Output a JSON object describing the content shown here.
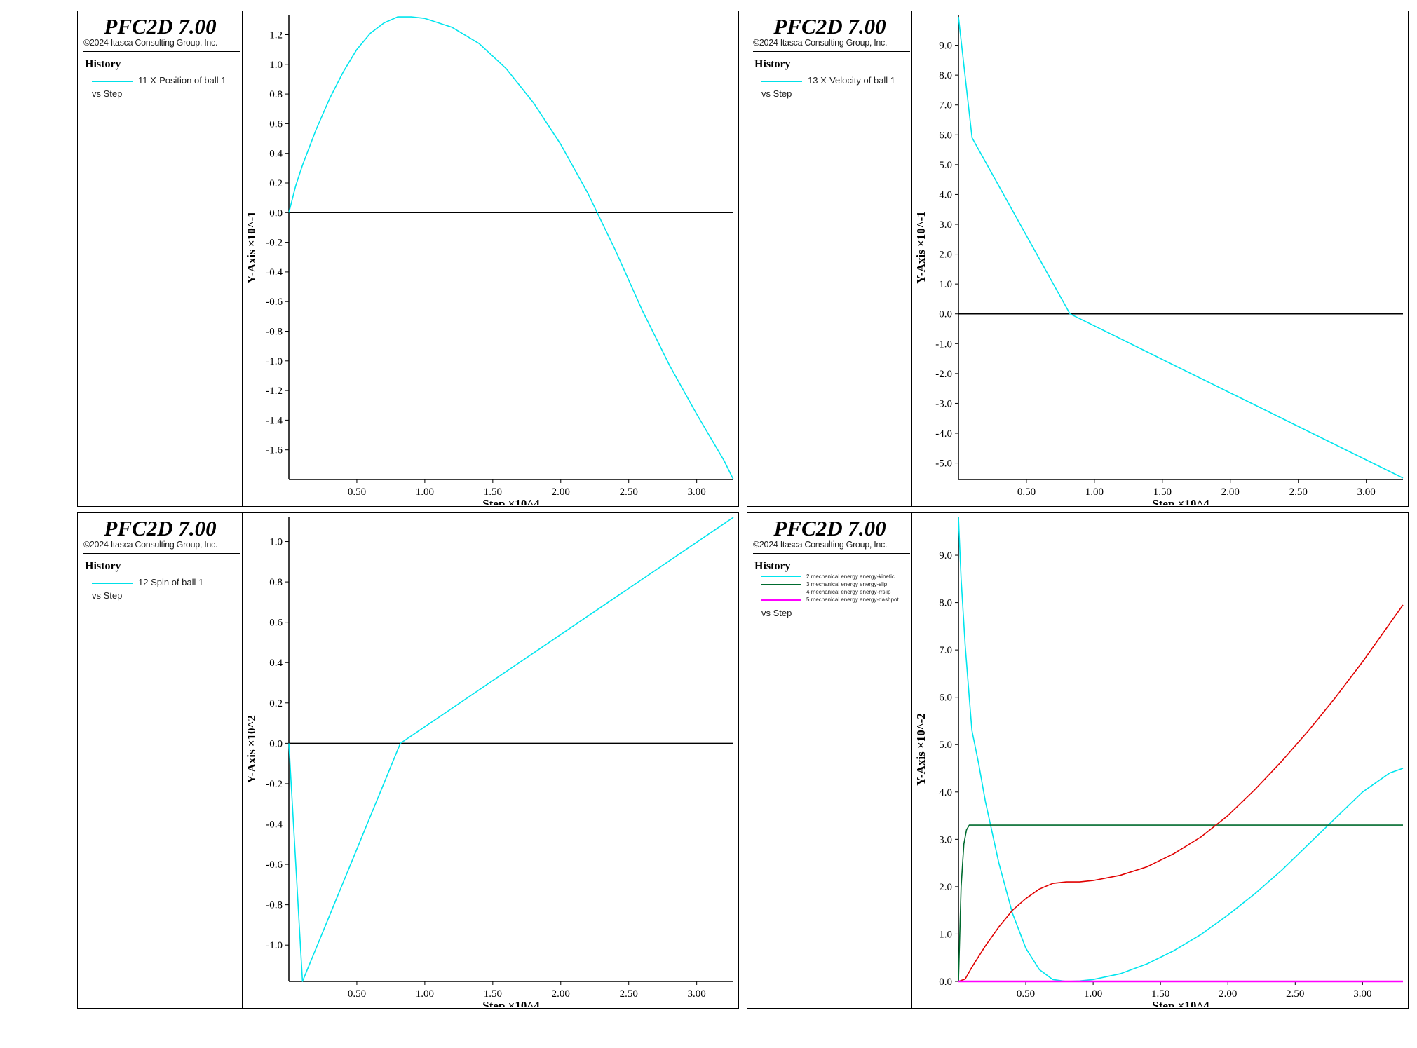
{
  "header": {
    "title": "PFC2D 7.00",
    "copyright": "©2024 Itasca Consulting Group, Inc.",
    "history_label": "History",
    "vs_label": "vs  Step"
  },
  "colors": {
    "cyan": "#00e5ee",
    "green": "#006b2f",
    "red": "#e00000",
    "magenta": "#ff00ff",
    "zero_line": "#000000"
  },
  "chart_data": [
    {
      "type": "line",
      "legend": [
        "11 X-Position of ball 1"
      ],
      "xlabel": "Step ×10^4",
      "ylabel": "Y-Axis ×10^-1",
      "xlim": [
        0,
        3.27
      ],
      "ylim": [
        -1.8,
        1.33
      ],
      "xticks": [
        0.5,
        1.0,
        1.5,
        2.0,
        2.5,
        3.0
      ],
      "xtick_labels": [
        "0.50",
        "1.00",
        "1.50",
        "2.00",
        "2.50",
        "3.00"
      ],
      "yticks": [
        1.2,
        1.0,
        0.8,
        0.6,
        0.4,
        0.2,
        0.0,
        -0.2,
        -0.4,
        -0.6,
        -0.8,
        -1.0,
        -1.2,
        -1.4,
        -1.6
      ],
      "ytick_labels": [
        "1.2",
        "1.0",
        "0.8",
        "0.6",
        "0.4",
        "0.2",
        "0.0",
        "-0.2",
        "-0.4",
        "-0.6",
        "-0.8",
        "-1.0",
        "-1.2",
        "-1.4",
        "-1.6"
      ],
      "zero_line": true,
      "series": [
        {
          "name": "11 X-Position of ball 1",
          "color": "#00e5ee",
          "x": [
            0.0,
            0.05,
            0.1,
            0.2,
            0.3,
            0.4,
            0.5,
            0.6,
            0.7,
            0.8,
            0.9,
            1.0,
            1.2,
            1.4,
            1.6,
            1.8,
            2.0,
            2.2,
            2.4,
            2.6,
            2.8,
            3.0,
            3.2,
            3.27
          ],
          "y": [
            0.0,
            0.18,
            0.32,
            0.56,
            0.77,
            0.95,
            1.1,
            1.21,
            1.28,
            1.32,
            1.32,
            1.31,
            1.25,
            1.14,
            0.97,
            0.74,
            0.46,
            0.13,
            -0.25,
            -0.66,
            -1.03,
            -1.36,
            -1.67,
            -1.8
          ]
        }
      ]
    },
    {
      "type": "line",
      "legend": [
        "13 X-Velocity of ball 1"
      ],
      "xlabel": "Step ×10^4",
      "ylabel": "Y-Axis ×10^-1",
      "xlim": [
        0,
        3.27
      ],
      "ylim": [
        -5.55,
        10.0
      ],
      "xticks": [
        0.5,
        1.0,
        1.5,
        2.0,
        2.5,
        3.0
      ],
      "xtick_labels": [
        "0.50",
        "1.00",
        "1.50",
        "2.00",
        "2.50",
        "3.00"
      ],
      "yticks": [
        9,
        8,
        7,
        6,
        5,
        4,
        3,
        2,
        1,
        0,
        -1,
        -2,
        -3,
        -4,
        -5
      ],
      "ytick_labels": [
        "9.0",
        "8.0",
        "7.0",
        "6.0",
        "5.0",
        "4.0",
        "3.0",
        "2.0",
        "1.0",
        "0.0",
        "-1.0",
        "-2.0",
        "-3.0",
        "-4.0",
        "-5.0"
      ],
      "zero_line": true,
      "series": [
        {
          "name": "13 X-Velocity of ball 1",
          "color": "#00e5ee",
          "x": [
            0.0,
            0.1,
            0.82,
            3.27
          ],
          "y": [
            9.95,
            5.9,
            0.0,
            -5.5
          ]
        }
      ]
    },
    {
      "type": "line",
      "legend": [
        "12 Spin of ball 1"
      ],
      "xlabel": "Step ×10^4",
      "ylabel": "Y-Axis ×10^2",
      "xlim": [
        0,
        3.27
      ],
      "ylim": [
        -1.18,
        1.12
      ],
      "xticks": [
        0.5,
        1.0,
        1.5,
        2.0,
        2.5,
        3.0
      ],
      "xtick_labels": [
        "0.50",
        "1.00",
        "1.50",
        "2.00",
        "2.50",
        "3.00"
      ],
      "yticks": [
        1.0,
        0.8,
        0.6,
        0.4,
        0.2,
        0.0,
        -0.2,
        -0.4,
        -0.6,
        -0.8,
        -1.0
      ],
      "ytick_labels": [
        "1.0",
        "0.8",
        "0.6",
        "0.4",
        "0.2",
        "0.0",
        "-0.2",
        "-0.4",
        "-0.6",
        "-0.8",
        "-1.0"
      ],
      "zero_line": true,
      "series": [
        {
          "name": "12 Spin of ball 1",
          "color": "#00e5ee",
          "x": [
            0.0,
            0.1,
            0.82,
            3.27
          ],
          "y": [
            0.0,
            -1.18,
            0.0,
            1.12
          ]
        }
      ]
    },
    {
      "type": "line",
      "legend": [
        "2 mechanical energy energy-kinetic",
        "3 mechanical energy energy-slip",
        "4 mechanical energy energy-rrslip",
        "5 mechanical energy energy-dashpot"
      ],
      "xlabel": "Step ×10^4",
      "ylabel": "Y-Axis ×10^-2",
      "xlim": [
        0,
        3.3
      ],
      "ylim": [
        0,
        9.8
      ],
      "xticks": [
        0.5,
        1.0,
        1.5,
        2.0,
        2.5,
        3.0
      ],
      "xtick_labels": [
        "0.50",
        "1.00",
        "1.50",
        "2.00",
        "2.50",
        "3.00"
      ],
      "yticks": [
        9,
        8,
        7,
        6,
        5,
        4,
        3,
        2,
        1,
        0
      ],
      "ytick_labels": [
        "9.0",
        "8.0",
        "7.0",
        "6.0",
        "5.0",
        "4.0",
        "3.0",
        "2.0",
        "1.0",
        "0.0"
      ],
      "zero_line": false,
      "series": [
        {
          "name": "2 mechanical energy energy-kinetic",
          "color": "#00e5ee",
          "x": [
            0.0,
            0.02,
            0.05,
            0.08,
            0.1,
            0.15,
            0.2,
            0.3,
            0.4,
            0.5,
            0.6,
            0.7,
            0.8,
            0.9,
            1.0,
            1.2,
            1.4,
            1.6,
            1.8,
            2.0,
            2.2,
            2.4,
            2.6,
            2.8,
            3.0,
            3.2,
            3.3
          ],
          "y": [
            9.8,
            8.5,
            7.1,
            6.0,
            5.3,
            4.6,
            3.8,
            2.5,
            1.45,
            0.7,
            0.25,
            0.04,
            0.0,
            0.01,
            0.04,
            0.16,
            0.37,
            0.65,
            0.99,
            1.4,
            1.85,
            2.35,
            2.9,
            3.45,
            4.0,
            4.4,
            4.5
          ]
        },
        {
          "name": "3 mechanical energy energy-slip",
          "color": "#006b2f",
          "x": [
            0.0,
            0.02,
            0.04,
            0.06,
            0.08,
            0.1,
            3.3
          ],
          "y": [
            0.0,
            2.0,
            2.9,
            3.2,
            3.3,
            3.3,
            3.3
          ]
        },
        {
          "name": "4 mechanical energy energy-rrslip",
          "color": "#e00000",
          "x": [
            0.0,
            0.05,
            0.1,
            0.2,
            0.3,
            0.4,
            0.5,
            0.6,
            0.7,
            0.8,
            0.9,
            1.0,
            1.2,
            1.4,
            1.6,
            1.8,
            2.0,
            2.2,
            2.4,
            2.6,
            2.8,
            3.0,
            3.2,
            3.3
          ],
          "y": [
            0.0,
            0.05,
            0.3,
            0.75,
            1.15,
            1.5,
            1.75,
            1.95,
            2.07,
            2.1,
            2.1,
            2.13,
            2.24,
            2.42,
            2.7,
            3.05,
            3.5,
            4.05,
            4.65,
            5.3,
            6.0,
            6.75,
            7.55,
            7.95
          ]
        },
        {
          "name": "5 mechanical energy energy-dashpot",
          "color": "#ff00ff",
          "x": [
            0.0,
            3.3
          ],
          "y": [
            0.0,
            0.0
          ]
        }
      ]
    }
  ]
}
